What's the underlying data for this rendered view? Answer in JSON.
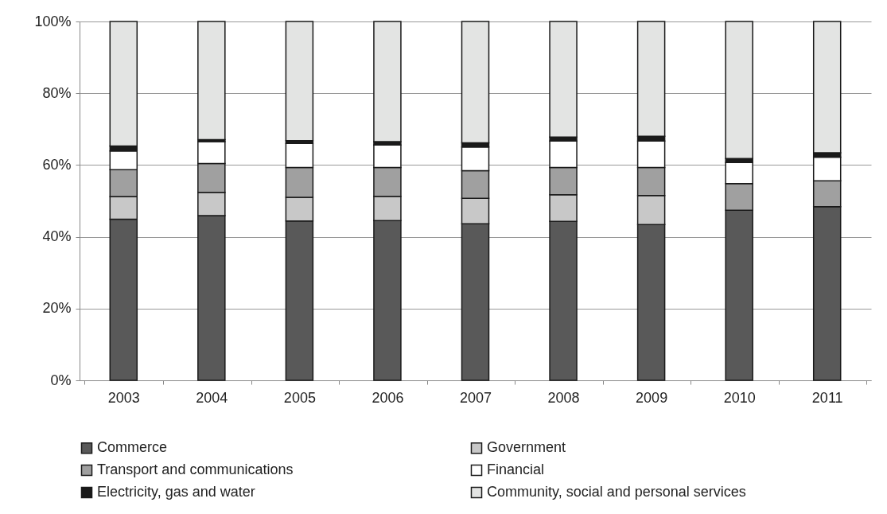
{
  "chart_data": {
    "type": "bar",
    "stacked": true,
    "categories": [
      "2003",
      "2004",
      "2005",
      "2006",
      "2007",
      "2008",
      "2009",
      "2010",
      "2011"
    ],
    "series": [
      {
        "name": "Commerce",
        "color": "#595959",
        "values": [
          44.9,
          45.9,
          44.4,
          44.5,
          43.6,
          44.3,
          43.4,
          47.4,
          48.4
        ]
      },
      {
        "name": "Government",
        "color": "#c8c8c8",
        "values": [
          6.3,
          6.5,
          6.6,
          6.8,
          7.1,
          7.4,
          8.1,
          null,
          null
        ]
      },
      {
        "name": "Transport and communications",
        "color": "#a0a0a0",
        "values": [
          7.5,
          8.0,
          8.3,
          8.0,
          7.7,
          7.6,
          7.8,
          7.4,
          7.2
        ]
      },
      {
        "name": "Financial",
        "color": "#ffffff",
        "values": [
          5.2,
          6.1,
          6.7,
          6.3,
          6.6,
          7.4,
          7.4,
          5.9,
          6.6
        ]
      },
      {
        "name": "Electricity, gas and water",
        "color": "#1a1a1a",
        "values": [
          1.4,
          0.6,
          0.8,
          0.9,
          1.2,
          1.1,
          1.3,
          1.1,
          1.2
        ]
      },
      {
        "name": "Community, social and personal services",
        "color": "#e3e4e3",
        "values": [
          34.7,
          32.9,
          33.2,
          33.5,
          33.8,
          32.2,
          32.0,
          38.2,
          36.6
        ]
      }
    ],
    "ylim": [
      0,
      100
    ],
    "yticks": [
      {
        "value": 0,
        "label": "0%"
      },
      {
        "value": 20,
        "label": "20%"
      },
      {
        "value": 40,
        "label": "40%"
      },
      {
        "value": 60,
        "label": "60%"
      },
      {
        "value": 80,
        "label": "80%"
      },
      {
        "value": 100,
        "label": "100%"
      }
    ],
    "grid": "y",
    "legend": "bottom"
  }
}
